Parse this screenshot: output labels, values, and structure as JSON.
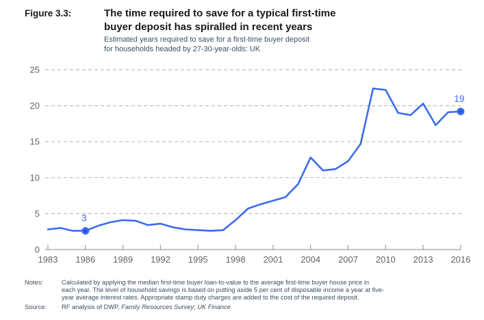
{
  "figure_label": "Figure 3.3:",
  "header": {
    "title_lines": [
      "The time required to save for a typical first-time",
      "buyer deposit has spiralled in recent years"
    ],
    "subtitle_lines": [
      "Estimated years required to save for a first-time buyer deposit",
      "for households headed by 27-30-year-olds: UK"
    ]
  },
  "chart_data": {
    "type": "line",
    "title": "The time required to save for a typical first-time buyer deposit has spiralled in recent years",
    "subtitle": "Estimated years required to save for a first-time buyer deposit for households headed by 27-30-year-olds: UK",
    "x": [
      1983,
      1984,
      1985,
      1986,
      1987,
      1988,
      1989,
      1990,
      1991,
      1992,
      1993,
      1994,
      1995,
      1996,
      1997,
      1998,
      1999,
      2000,
      2001,
      2002,
      2003,
      2004,
      2005,
      2006,
      2007,
      2008,
      2009,
      2010,
      2011,
      2012,
      2013,
      2014,
      2015,
      2016
    ],
    "values": [
      2.8,
      3.0,
      2.6,
      2.6,
      3.3,
      3.8,
      4.1,
      4.0,
      3.4,
      3.6,
      3.1,
      2.8,
      2.7,
      2.6,
      2.7,
      4.1,
      5.7,
      6.3,
      6.8,
      7.3,
      9.1,
      12.8,
      11.0,
      11.2,
      12.3,
      14.7,
      22.4,
      22.2,
      19.0,
      18.7,
      20.3,
      17.3,
      19.1,
      19.2
    ],
    "x_tick_labels": [
      "1983",
      "1986",
      "1989",
      "1992",
      "1995",
      "1998",
      "2001",
      "2004",
      "2007",
      "2010",
      "2013",
      "2016"
    ],
    "y_ticks": [
      0,
      5,
      10,
      15,
      20,
      25
    ],
    "ylim": [
      0,
      25
    ],
    "xlabel": "",
    "ylabel": "",
    "grid": "horizontal-dashed",
    "legend": "none",
    "annotations": [
      {
        "x": 1986,
        "y": 2.6,
        "label": "3"
      },
      {
        "x": 2016,
        "y": 19.2,
        "label": "19"
      }
    ],
    "line_color": "#3a6bef",
    "marker_core_color": "#2250d0",
    "gridline_color": "#bcbcbc",
    "axis_color": "#9e9e9e",
    "tick_label_color": "#5f6368"
  },
  "footer": {
    "notes_label": "Notes:",
    "notes_lines": [
      "Calculated by applying the median first-time buyer loan-to-value to the average first-time buyer house price in",
      "each year. The level of household savings is based on putting aside 5 per cent of disposable income a year at five-",
      "year average interest rates. Appropriate stamp duty charges are added to the cost of the required deposit."
    ],
    "source_label": "Source:",
    "source_prefix": "RF analysis of DWP, ",
    "source_italic": "Family Resources Survey; UK Finance"
  }
}
